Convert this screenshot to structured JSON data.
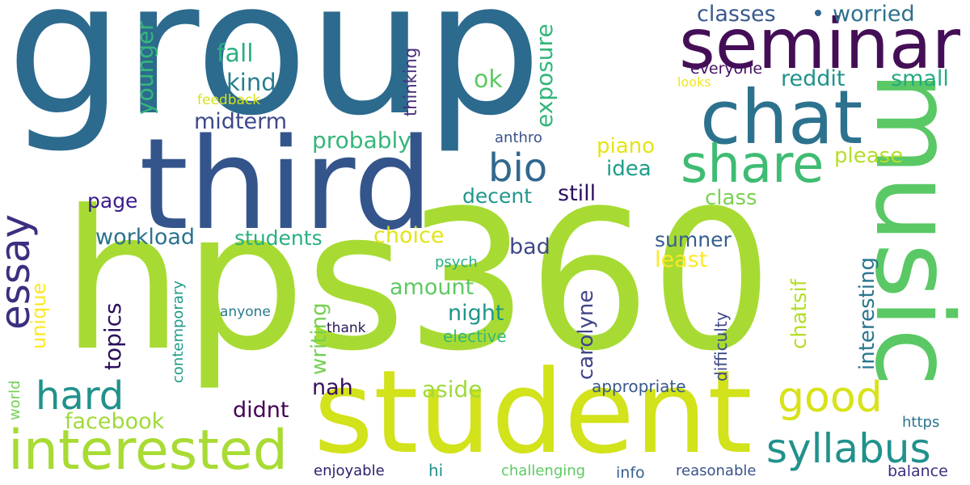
{
  "colors": {
    "background": "#ffffff"
  },
  "words": [
    {
      "text": "group",
      "color": "#2c6a8e"
    },
    {
      "text": "hps360",
      "color": "#a7db33"
    },
    {
      "text": "student",
      "color": "#d2e21b"
    },
    {
      "text": "music",
      "color": "#5ac865"
    },
    {
      "text": "third",
      "color": "#34558b"
    },
    {
      "text": "seminar",
      "color": "#440e57"
    },
    {
      "text": "chat",
      "color": "#2c728e"
    },
    {
      "text": "share",
      "color": "#3fbc73"
    },
    {
      "text": "interested",
      "color": "#a8db34"
    },
    {
      "text": "syllabus",
      "color": "#21918c"
    },
    {
      "text": "good",
      "color": "#d8e219"
    },
    {
      "text": "hard",
      "color": "#21918c"
    },
    {
      "text": "essay",
      "color": "#3b2f80"
    },
    {
      "text": "bio",
      "color": "#31688e"
    },
    {
      "text": "classes",
      "color": "#38598c"
    },
    {
      "text": "worried",
      "color": "#2d708e"
    },
    {
      "text": "fall",
      "color": "#29af7f"
    },
    {
      "text": "kind",
      "color": "#287d8e"
    },
    {
      "text": "midterm",
      "color": "#3e4989"
    },
    {
      "text": "younger",
      "color": "#35b779"
    },
    {
      "text": "feedback",
      "color": "#d5e21a"
    },
    {
      "text": "thinking",
      "color": "#472d7b"
    },
    {
      "text": "ok",
      "color": "#5ec962"
    },
    {
      "text": "exposure",
      "color": "#32b67a"
    },
    {
      "text": "everyone",
      "color": "#471063"
    },
    {
      "text": "looks",
      "color": "#f1e51d"
    },
    {
      "text": "reddit",
      "color": "#20928c"
    },
    {
      "text": "small",
      "color": "#25ab82"
    },
    {
      "text": "probably",
      "color": "#35b779"
    },
    {
      "text": "anthro",
      "color": "#3a538b"
    },
    {
      "text": "piano",
      "color": "#e5e419"
    },
    {
      "text": "please",
      "color": "#b5de2b"
    },
    {
      "text": "idea",
      "color": "#1f9e89"
    },
    {
      "text": "page",
      "color": "#3b1c8c"
    },
    {
      "text": "decent",
      "color": "#1f988b"
    },
    {
      "text": "still",
      "color": "#2d1160"
    },
    {
      "text": "class",
      "color": "#7ad151"
    },
    {
      "text": "workload",
      "color": "#2c728e"
    },
    {
      "text": "students",
      "color": "#29af7f"
    },
    {
      "text": "choice",
      "color": "#e2e418"
    },
    {
      "text": "bad",
      "color": "#3e4989"
    },
    {
      "text": "sumner",
      "color": "#355f8d"
    },
    {
      "text": "least",
      "color": "#fde725"
    },
    {
      "text": "psych",
      "color": "#27ad81"
    },
    {
      "text": "amount",
      "color": "#5ec962"
    },
    {
      "text": "contemporary",
      "color": "#1e9b8a"
    },
    {
      "text": "unique",
      "color": "#fde725"
    },
    {
      "text": "topics",
      "color": "#2c0f5c"
    },
    {
      "text": "writing",
      "color": "#75d054"
    },
    {
      "text": "carolyne",
      "color": "#414487"
    },
    {
      "text": "chatsif",
      "color": "#b5de2b"
    },
    {
      "text": "interesting",
      "color": "#2a768e"
    },
    {
      "text": "difficulty",
      "color": "#3e4a89"
    },
    {
      "text": "night",
      "color": "#1f968b"
    },
    {
      "text": "anyone",
      "color": "#2a788e"
    },
    {
      "text": "thank",
      "color": "#2a1858"
    },
    {
      "text": "elective",
      "color": "#35b779"
    },
    {
      "text": "nah",
      "color": "#3a0f5e"
    },
    {
      "text": "aside",
      "color": "#9fda3a"
    },
    {
      "text": "appropriate",
      "color": "#38598c"
    },
    {
      "text": "didnt",
      "color": "#440154"
    },
    {
      "text": "facebook",
      "color": "#a0da39"
    },
    {
      "text": "world",
      "color": "#73d056"
    },
    {
      "text": "https",
      "color": "#2a768e"
    },
    {
      "text": "enjoyable",
      "color": "#2d1e6b"
    },
    {
      "text": "hi",
      "color": "#20928c"
    },
    {
      "text": "challenging",
      "color": "#5ec962"
    },
    {
      "text": "info",
      "color": "#355f8d"
    },
    {
      "text": "reasonable",
      "color": "#3b528b"
    },
    {
      "text": "balance",
      "color": "#3b2f80"
    }
  ]
}
